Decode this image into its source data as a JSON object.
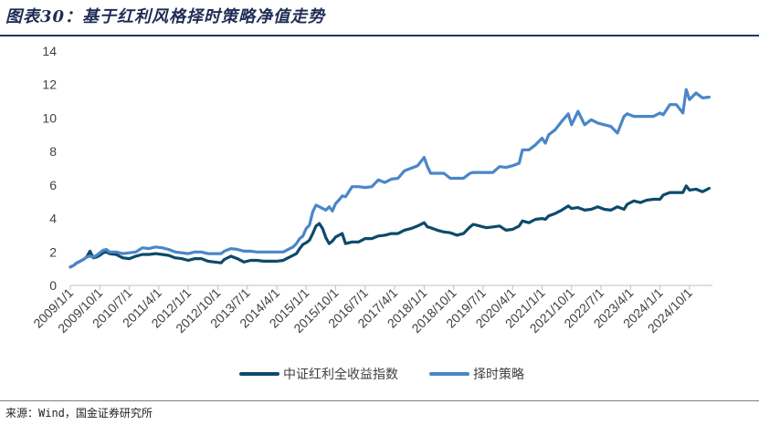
{
  "header": {
    "title": "图表30：基于红利风格择时策略净值走势"
  },
  "footer": {
    "source": "来源：Wind，国金证券研究所"
  },
  "chart_data": {
    "type": "line",
    "title": "图表30：基于红利风格择时策略净值走势",
    "xlabel": "",
    "ylabel": "",
    "ylim": [
      0,
      14
    ],
    "yticks": [
      0,
      2,
      4,
      6,
      8,
      10,
      12,
      14
    ],
    "grid": false,
    "legend_position": "bottom-center",
    "x_range": [
      "2009/1/1",
      "2025/5/1"
    ],
    "x_tick_labels": [
      "2009/1/1",
      "2009/10/1",
      "2010/7/1",
      "2011/4/1",
      "2012/1/1",
      "2012/10/1",
      "2013/7/1",
      "2014/4/1",
      "2015/1/1",
      "2015/10/1",
      "2016/7/1",
      "2017/4/1",
      "2018/1/1",
      "2018/10/1",
      "2019/7/1",
      "2020/4/1",
      "2021/1/1",
      "2021/10/1",
      "2022/7/1",
      "2023/4/1",
      "2024/1/1",
      "2024/10/1"
    ],
    "series": [
      {
        "name": "中证红利全收益指数",
        "color": "#0d4a6b",
        "points": [
          [
            "2009/1/1",
            1.1
          ],
          [
            "2009/2/1",
            1.2
          ],
          [
            "2009/3/1",
            1.35
          ],
          [
            "2009/4/1",
            1.45
          ],
          [
            "2009/5/1",
            1.55
          ],
          [
            "2009/6/1",
            1.7
          ],
          [
            "2009/7/1",
            2.05
          ],
          [
            "2009/8/1",
            1.65
          ],
          [
            "2009/9/1",
            1.7
          ],
          [
            "2009/10/1",
            1.8
          ],
          [
            "2009/11/1",
            1.95
          ],
          [
            "2009/12/1",
            2.0
          ],
          [
            "2010/1/1",
            1.9
          ],
          [
            "2010/3/1",
            1.85
          ],
          [
            "2010/5/1",
            1.65
          ],
          [
            "2010/7/1",
            1.6
          ],
          [
            "2010/9/1",
            1.75
          ],
          [
            "2010/11/1",
            1.85
          ],
          [
            "2011/1/1",
            1.85
          ],
          [
            "2011/3/1",
            1.9
          ],
          [
            "2011/5/1",
            1.85
          ],
          [
            "2011/7/1",
            1.8
          ],
          [
            "2011/9/1",
            1.65
          ],
          [
            "2011/11/1",
            1.6
          ],
          [
            "2012/1/1",
            1.5
          ],
          [
            "2012/3/1",
            1.6
          ],
          [
            "2012/5/1",
            1.6
          ],
          [
            "2012/7/1",
            1.45
          ],
          [
            "2012/9/1",
            1.4
          ],
          [
            "2012/11/1",
            1.35
          ],
          [
            "2012/12/1",
            1.55
          ],
          [
            "2013/2/1",
            1.75
          ],
          [
            "2013/4/1",
            1.6
          ],
          [
            "2013/6/1",
            1.4
          ],
          [
            "2013/8/1",
            1.5
          ],
          [
            "2013/10/1",
            1.5
          ],
          [
            "2013/12/1",
            1.45
          ],
          [
            "2014/2/1",
            1.45
          ],
          [
            "2014/4/1",
            1.45
          ],
          [
            "2014/6/1",
            1.5
          ],
          [
            "2014/7/1",
            1.6
          ],
          [
            "2014/8/1",
            1.7
          ],
          [
            "2014/9/1",
            1.8
          ],
          [
            "2014/10/1",
            1.9
          ],
          [
            "2014/11/1",
            2.2
          ],
          [
            "2014/12/1",
            2.45
          ],
          [
            "2015/1/1",
            2.55
          ],
          [
            "2015/2/1",
            2.7
          ],
          [
            "2015/3/1",
            3.1
          ],
          [
            "2015/4/1",
            3.55
          ],
          [
            "2015/5/1",
            3.7
          ],
          [
            "2015/6/1",
            3.4
          ],
          [
            "2015/7/1",
            2.85
          ],
          [
            "2015/8/1",
            2.5
          ],
          [
            "2015/9/1",
            2.65
          ],
          [
            "2015/10/1",
            2.9
          ],
          [
            "2015/11/1",
            3.0
          ],
          [
            "2015/12/1",
            3.1
          ],
          [
            "2016/1/1",
            2.5
          ],
          [
            "2016/3/1",
            2.6
          ],
          [
            "2016/5/1",
            2.6
          ],
          [
            "2016/7/1",
            2.8
          ],
          [
            "2016/9/1",
            2.8
          ],
          [
            "2016/11/1",
            2.95
          ],
          [
            "2017/1/1",
            3.0
          ],
          [
            "2017/3/1",
            3.1
          ],
          [
            "2017/5/1",
            3.1
          ],
          [
            "2017/7/1",
            3.3
          ],
          [
            "2017/9/1",
            3.4
          ],
          [
            "2017/11/1",
            3.55
          ],
          [
            "2018/1/1",
            3.75
          ],
          [
            "2018/2/1",
            3.5
          ],
          [
            "2018/3/1",
            3.45
          ],
          [
            "2018/5/1",
            3.3
          ],
          [
            "2018/7/1",
            3.2
          ],
          [
            "2018/9/1",
            3.15
          ],
          [
            "2018/11/1",
            3.0
          ],
          [
            "2019/1/1",
            3.1
          ],
          [
            "2019/3/1",
            3.5
          ],
          [
            "2019/4/1",
            3.65
          ],
          [
            "2019/6/1",
            3.55
          ],
          [
            "2019/8/1",
            3.45
          ],
          [
            "2019/10/1",
            3.5
          ],
          [
            "2019/12/1",
            3.55
          ],
          [
            "2020/2/1",
            3.3
          ],
          [
            "2020/4/1",
            3.35
          ],
          [
            "2020/6/1",
            3.55
          ],
          [
            "2020/7/1",
            3.85
          ],
          [
            "2020/9/1",
            3.75
          ],
          [
            "2020/11/1",
            3.95
          ],
          [
            "2021/1/1",
            4.0
          ],
          [
            "2021/2/1",
            3.95
          ],
          [
            "2021/3/1",
            4.15
          ],
          [
            "2021/5/1",
            4.3
          ],
          [
            "2021/7/1",
            4.5
          ],
          [
            "2021/9/1",
            4.75
          ],
          [
            "2021/10/1",
            4.6
          ],
          [
            "2021/12/1",
            4.65
          ],
          [
            "2022/2/1",
            4.5
          ],
          [
            "2022/4/1",
            4.55
          ],
          [
            "2022/6/1",
            4.7
          ],
          [
            "2022/8/1",
            4.55
          ],
          [
            "2022/10/1",
            4.5
          ],
          [
            "2022/12/1",
            4.7
          ],
          [
            "2023/2/1",
            4.55
          ],
          [
            "2023/3/1",
            4.85
          ],
          [
            "2023/5/1",
            5.05
          ],
          [
            "2023/7/1",
            4.95
          ],
          [
            "2023/9/1",
            5.1
          ],
          [
            "2023/11/1",
            5.15
          ],
          [
            "2024/1/1",
            5.15
          ],
          [
            "2024/2/1",
            5.4
          ],
          [
            "2024/4/1",
            5.55
          ],
          [
            "2024/6/1",
            5.55
          ],
          [
            "2024/8/1",
            5.55
          ],
          [
            "2024/9/1",
            5.95
          ],
          [
            "2024/10/1",
            5.7
          ],
          [
            "2024/12/1",
            5.75
          ],
          [
            "2025/2/1",
            5.6
          ],
          [
            "2025/4/1",
            5.8
          ]
        ]
      },
      {
        "name": "择时策略",
        "color": "#4a86c8",
        "points": [
          [
            "2009/1/1",
            1.1
          ],
          [
            "2009/2/1",
            1.2
          ],
          [
            "2009/3/1",
            1.35
          ],
          [
            "2009/4/1",
            1.45
          ],
          [
            "2009/5/1",
            1.55
          ],
          [
            "2009/6/1",
            1.7
          ],
          [
            "2009/7/1",
            1.75
          ],
          [
            "2009/8/1",
            1.7
          ],
          [
            "2009/9/1",
            1.8
          ],
          [
            "2009/10/1",
            1.95
          ],
          [
            "2009/11/1",
            2.1
          ],
          [
            "2009/12/1",
            2.15
          ],
          [
            "2010/1/1",
            2.0
          ],
          [
            "2010/3/1",
            2.0
          ],
          [
            "2010/5/1",
            1.9
          ],
          [
            "2010/7/1",
            1.95
          ],
          [
            "2010/9/1",
            2.0
          ],
          [
            "2010/11/1",
            2.25
          ],
          [
            "2011/1/1",
            2.2
          ],
          [
            "2011/3/1",
            2.3
          ],
          [
            "2011/5/1",
            2.25
          ],
          [
            "2011/7/1",
            2.15
          ],
          [
            "2011/9/1",
            2.0
          ],
          [
            "2011/11/1",
            1.95
          ],
          [
            "2012/1/1",
            1.9
          ],
          [
            "2012/3/1",
            2.0
          ],
          [
            "2012/5/1",
            2.0
          ],
          [
            "2012/7/1",
            1.9
          ],
          [
            "2012/9/1",
            1.9
          ],
          [
            "2012/11/1",
            1.9
          ],
          [
            "2012/12/1",
            2.05
          ],
          [
            "2013/2/1",
            2.2
          ],
          [
            "2013/4/1",
            2.15
          ],
          [
            "2013/6/1",
            2.05
          ],
          [
            "2013/8/1",
            2.05
          ],
          [
            "2013/10/1",
            2.0
          ],
          [
            "2013/12/1",
            2.0
          ],
          [
            "2014/2/1",
            2.0
          ],
          [
            "2014/4/1",
            2.0
          ],
          [
            "2014/6/1",
            2.0
          ],
          [
            "2014/7/1",
            2.1
          ],
          [
            "2014/8/1",
            2.2
          ],
          [
            "2014/9/1",
            2.3
          ],
          [
            "2014/10/1",
            2.5
          ],
          [
            "2014/11/1",
            2.8
          ],
          [
            "2014/12/1",
            2.95
          ],
          [
            "2015/1/1",
            3.4
          ],
          [
            "2015/2/1",
            3.6
          ],
          [
            "2015/3/1",
            4.4
          ],
          [
            "2015/4/1",
            4.8
          ],
          [
            "2015/5/1",
            4.7
          ],
          [
            "2015/6/1",
            4.6
          ],
          [
            "2015/7/1",
            4.5
          ],
          [
            "2015/8/1",
            4.7
          ],
          [
            "2015/9/1",
            4.45
          ],
          [
            "2015/10/1",
            4.9
          ],
          [
            "2015/11/1",
            5.1
          ],
          [
            "2015/12/1",
            5.35
          ],
          [
            "2016/1/1",
            5.3
          ],
          [
            "2016/3/1",
            5.9
          ],
          [
            "2016/5/1",
            5.9
          ],
          [
            "2016/7/1",
            5.85
          ],
          [
            "2016/9/1",
            5.9
          ],
          [
            "2016/11/1",
            6.3
          ],
          [
            "2017/1/1",
            6.15
          ],
          [
            "2017/3/1",
            6.35
          ],
          [
            "2017/5/1",
            6.4
          ],
          [
            "2017/7/1",
            6.85
          ],
          [
            "2017/9/1",
            7.0
          ],
          [
            "2017/11/1",
            7.15
          ],
          [
            "2018/1/1",
            7.65
          ],
          [
            "2018/2/1",
            7.1
          ],
          [
            "2018/3/1",
            6.7
          ],
          [
            "2018/5/1",
            6.7
          ],
          [
            "2018/7/1",
            6.7
          ],
          [
            "2018/9/1",
            6.4
          ],
          [
            "2018/11/1",
            6.4
          ],
          [
            "2019/1/1",
            6.4
          ],
          [
            "2019/3/1",
            6.7
          ],
          [
            "2019/4/1",
            6.75
          ],
          [
            "2019/6/1",
            6.75
          ],
          [
            "2019/8/1",
            6.75
          ],
          [
            "2019/10/1",
            6.75
          ],
          [
            "2019/12/1",
            7.1
          ],
          [
            "2020/2/1",
            7.05
          ],
          [
            "2020/4/1",
            7.15
          ],
          [
            "2020/6/1",
            7.3
          ],
          [
            "2020/7/1",
            8.1
          ],
          [
            "2020/9/1",
            8.1
          ],
          [
            "2020/11/1",
            8.4
          ],
          [
            "2021/1/1",
            8.8
          ],
          [
            "2021/2/1",
            8.5
          ],
          [
            "2021/3/1",
            9.0
          ],
          [
            "2021/5/1",
            9.3
          ],
          [
            "2021/7/1",
            9.8
          ],
          [
            "2021/9/1",
            10.25
          ],
          [
            "2021/10/1",
            9.6
          ],
          [
            "2021/12/1",
            10.4
          ],
          [
            "2022/2/1",
            9.6
          ],
          [
            "2022/4/1",
            9.9
          ],
          [
            "2022/6/1",
            9.7
          ],
          [
            "2022/8/1",
            9.6
          ],
          [
            "2022/10/1",
            9.5
          ],
          [
            "2022/12/1",
            9.1
          ],
          [
            "2023/2/1",
            10.1
          ],
          [
            "2023/3/1",
            10.25
          ],
          [
            "2023/5/1",
            10.1
          ],
          [
            "2023/7/1",
            10.1
          ],
          [
            "2023/9/1",
            10.1
          ],
          [
            "2023/11/1",
            10.1
          ],
          [
            "2024/1/1",
            10.3
          ],
          [
            "2024/2/1",
            10.2
          ],
          [
            "2024/4/1",
            10.8
          ],
          [
            "2024/6/1",
            10.8
          ],
          [
            "2024/8/1",
            10.3
          ],
          [
            "2024/9/1",
            11.7
          ],
          [
            "2024/10/1",
            11.1
          ],
          [
            "2024/12/1",
            11.5
          ],
          [
            "2025/2/1",
            11.2
          ],
          [
            "2025/4/1",
            11.25
          ]
        ]
      }
    ]
  }
}
